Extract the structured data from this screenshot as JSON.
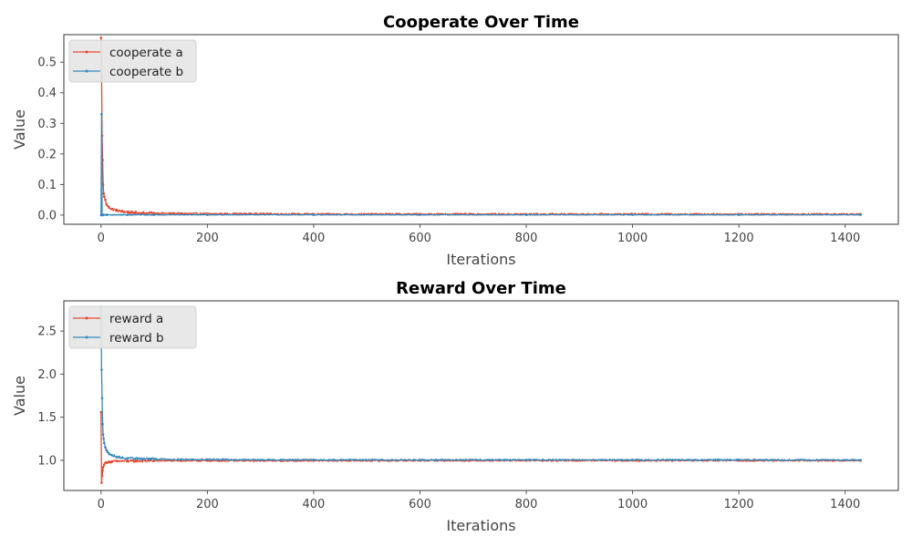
{
  "chart_data": [
    {
      "type": "line",
      "title": "Cooperate Over Time",
      "xlabel": "Iterations",
      "ylabel": "Value",
      "xlim": [
        -70,
        1500
      ],
      "ylim": [
        -0.03,
        0.59
      ],
      "xticks": [
        0,
        200,
        400,
        600,
        800,
        1000,
        1200,
        1400
      ],
      "yticks": [
        0.0,
        0.1,
        0.2,
        0.3,
        0.4,
        0.5
      ],
      "ytick_labels": [
        "0.0",
        "0.1",
        "0.2",
        "0.3",
        "0.4",
        "0.5"
      ],
      "grid": false,
      "legend": "top-left",
      "series": [
        {
          "name": "cooperate a",
          "color": "#E24A33",
          "x": [
            0,
            1,
            2,
            3,
            4,
            5,
            6,
            8,
            10,
            15,
            20,
            30,
            40,
            50,
            60,
            80,
            100,
            150,
            200,
            300,
            400,
            600,
            800,
            1000,
            1200,
            1429
          ],
          "y": [
            0.58,
            0.45,
            0.26,
            0.18,
            0.1,
            0.07,
            0.06,
            0.05,
            0.035,
            0.025,
            0.02,
            0.015,
            0.012,
            0.01,
            0.008,
            0.007,
            0.006,
            0.005,
            0.004,
            0.004,
            0.003,
            0.003,
            0.003,
            0.003,
            0.003,
            0.003
          ]
        },
        {
          "name": "cooperate b",
          "color": "#348ABD",
          "x": [
            0,
            1,
            2,
            3,
            5,
            10,
            50,
            100,
            200,
            400,
            600,
            800,
            1000,
            1200,
            1429
          ],
          "y": [
            0.0,
            0.33,
            0.0,
            0.0,
            0.001,
            0.001,
            0.001,
            0.001,
            0.001,
            0.001,
            0.001,
            0.001,
            0.001,
            0.001,
            0.001
          ]
        }
      ]
    },
    {
      "type": "line",
      "title": "Reward Over Time",
      "xlabel": "Iterations",
      "ylabel": "Value",
      "xlim": [
        -70,
        1500
      ],
      "ylim": [
        0.65,
        2.85
      ],
      "xticks": [
        0,
        200,
        400,
        600,
        800,
        1000,
        1200,
        1400
      ],
      "yticks": [
        1.0,
        1.5,
        2.0,
        2.5
      ],
      "ytick_labels": [
        "1.0",
        "1.5",
        "2.0",
        "2.5"
      ],
      "grid": false,
      "legend": "top-left",
      "series": [
        {
          "name": "reward a",
          "color": "#E24A33",
          "x": [
            0,
            1,
            2,
            3,
            4,
            6,
            8,
            10,
            15,
            20,
            30,
            50,
            100,
            200,
            400,
            600,
            800,
            1000,
            1200,
            1429
          ],
          "y": [
            1.56,
            0.74,
            0.82,
            0.88,
            0.92,
            0.95,
            0.97,
            0.975,
            0.98,
            0.985,
            0.99,
            0.99,
            0.995,
            0.995,
            0.995,
            0.997,
            0.997,
            0.997,
            0.997,
            0.997
          ]
        },
        {
          "name": "reward b",
          "color": "#348ABD",
          "x": [
            0,
            1,
            2,
            3,
            4,
            5,
            6,
            8,
            10,
            12,
            15,
            20,
            30,
            40,
            50,
            70,
            100,
            150,
            200,
            300,
            400,
            600,
            800,
            1000,
            1200,
            1429
          ],
          "y": [
            2.78,
            2.05,
            1.72,
            1.42,
            1.3,
            1.25,
            1.2,
            1.15,
            1.12,
            1.1,
            1.08,
            1.06,
            1.04,
            1.03,
            1.02,
            1.02,
            1.015,
            1.01,
            1.01,
            1.005,
            1.005,
            1.005,
            1.005,
            1.005,
            1.005,
            1.003
          ]
        }
      ]
    }
  ]
}
